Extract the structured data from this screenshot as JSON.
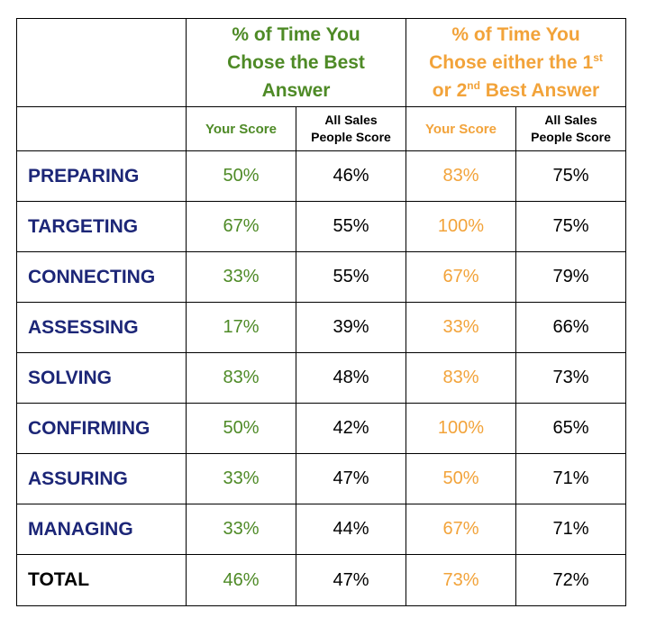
{
  "header": {
    "group1": {
      "title_line1": "% of Time You",
      "title_line2": "Chose the Best",
      "title_line3": "Answer",
      "color": "#4e8a26"
    },
    "group2": {
      "title_line1": "% of Time You",
      "title_line2_pre": "Chose either the 1",
      "title_line2_sup": "st",
      "title_line3_pre": "or 2",
      "title_line3_sup": "nd",
      "title_line3_post": " Best Answer",
      "color": "#f2a33a"
    },
    "sub": {
      "your_score": "Your Score",
      "all_sales_line1": "All Sales",
      "all_sales_line2": "People Score"
    }
  },
  "rows": [
    {
      "label": "PREPARING",
      "best_yours": "50%",
      "best_all": "46%",
      "top2_yours": "83%",
      "top2_all": "75%"
    },
    {
      "label": "TARGETING",
      "best_yours": "67%",
      "best_all": "55%",
      "top2_yours": "100%",
      "top2_all": "75%"
    },
    {
      "label": "CONNECTING",
      "best_yours": "33%",
      "best_all": "55%",
      "top2_yours": "67%",
      "top2_all": "79%"
    },
    {
      "label": "ASSESSING",
      "best_yours": "17%",
      "best_all": "39%",
      "top2_yours": "33%",
      "top2_all": "66%"
    },
    {
      "label": "SOLVING",
      "best_yours": "83%",
      "best_all": "48%",
      "top2_yours": "83%",
      "top2_all": "73%"
    },
    {
      "label": "CONFIRMING",
      "best_yours": "50%",
      "best_all": "42%",
      "top2_yours": "100%",
      "top2_all": "65%"
    },
    {
      "label": "ASSURING",
      "best_yours": "33%",
      "best_all": "47%",
      "top2_yours": "50%",
      "top2_all": "71%"
    },
    {
      "label": "MANAGING",
      "best_yours": "33%",
      "best_all": "44%",
      "top2_yours": "67%",
      "top2_all": "71%"
    }
  ],
  "total": {
    "label": "TOTAL",
    "best_yours": "46%",
    "best_all": "47%",
    "top2_yours": "73%",
    "top2_all": "72%"
  },
  "colors": {
    "category": "#1c2677",
    "green": "#4e8a26",
    "orange": "#f2a33a"
  }
}
